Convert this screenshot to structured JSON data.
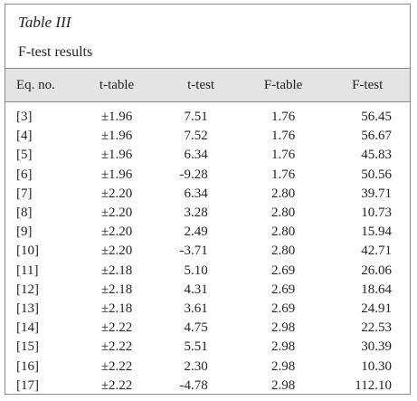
{
  "title": "Table III",
  "subtitle": "F-test results",
  "table": {
    "header": [
      "Eq. no.",
      "t-table",
      "t-test",
      "F-table",
      "F-test"
    ],
    "rows": [
      [
        "[3]",
        "±1.96",
        "7.51",
        "1.76",
        "56.45"
      ],
      [
        "[4]",
        "±1.96",
        "7.52",
        "1.76",
        "56.67"
      ],
      [
        "[5]",
        "±1.96",
        "6.34",
        "1.76",
        "45.83"
      ],
      [
        "[6]",
        "±1.96",
        "-9.28",
        "1.76",
        "50.56"
      ],
      [
        "[7]",
        "±2.20",
        "6.34",
        "2.80",
        "39.71"
      ],
      [
        "[8]",
        "±2.20",
        "3.28",
        "2.80",
        "10.73"
      ],
      [
        "[9]",
        "±2.20",
        "2.49",
        "2.80",
        "15.94"
      ],
      [
        "[10]",
        "±2.20",
        "-3.71",
        "2.80",
        "42.71"
      ],
      [
        "[11]",
        "±2.18",
        "5.10",
        "2.69",
        "26.06"
      ],
      [
        "[12]",
        "±2.18",
        "4.31",
        "2.69",
        "18.64"
      ],
      [
        "[13]",
        "±2.18",
        "3.61",
        "2.69",
        "24.91"
      ],
      [
        "[14]",
        "±2.22",
        "4.75",
        "2.98",
        "22.53"
      ],
      [
        "[15]",
        "±2.22",
        "5.51",
        "2.98",
        "30.39"
      ],
      [
        "[16]",
        "±2.22",
        "2.30",
        "2.98",
        "10.30"
      ],
      [
        "[17]",
        "±2.22",
        "-4.78",
        "2.98",
        "112.10"
      ]
    ]
  }
}
